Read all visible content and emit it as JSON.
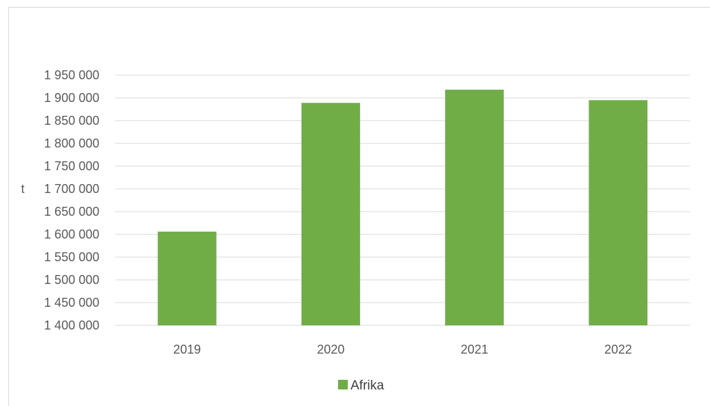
{
  "chart_data": {
    "type": "bar",
    "categories": [
      "2019",
      "2020",
      "2021",
      "2022"
    ],
    "series": [
      {
        "name": "Afrika",
        "values": [
          1606000,
          1889000,
          1918000,
          1895000
        ],
        "color": "#70ad47"
      }
    ],
    "ylabel": "t",
    "ylim": [
      1400000,
      1950000
    ],
    "ytick_step": 50000,
    "ytick_labels": [
      "1 400 000",
      "1 450 000",
      "1 500 000",
      "1 550 000",
      "1 600 000",
      "1 650 000",
      "1 700 000",
      "1 750 000",
      "1 800 000",
      "1 850 000",
      "1 900 000",
      "1 950 000"
    ],
    "grid": true,
    "gridline_color": "#d9d9d9",
    "legend_position": "bottom"
  }
}
